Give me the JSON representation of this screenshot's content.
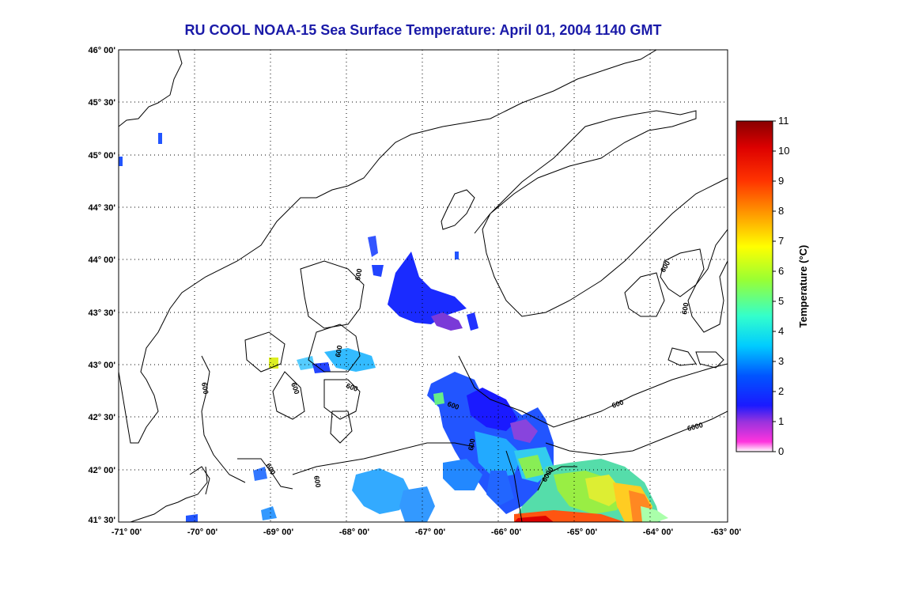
{
  "title": "RU COOL  NOAA-15  Sea Surface Temperature:  April 01, 2004 1140 GMT",
  "axes": {
    "lon_ticks": [
      "-71° 00'",
      "-70° 00'",
      "-69° 00'",
      "-68° 00'",
      "-67° 00'",
      "-66° 00'",
      "-65° 00'",
      "-64° 00'",
      "-63° 00'"
    ],
    "lat_ticks": [
      "46° 00'",
      "45° 30'",
      "45° 00'",
      "44° 30'",
      "44° 00'",
      "43° 30'",
      "43° 00'",
      "42° 30'",
      "42° 00'",
      "41° 30'"
    ]
  },
  "colorbar": {
    "label": "Temperature (°C)",
    "ticks": [
      "0",
      "1",
      "2",
      "3",
      "4",
      "5",
      "6",
      "7",
      "8",
      "9",
      "10",
      "11"
    ],
    "min": 0,
    "max": 11,
    "colors": [
      "#ffffff",
      "#ff33cc",
      "#8833dd",
      "#1a1aff",
      "#0066ff",
      "#00ccff",
      "#33ffcc",
      "#99ff33",
      "#ffff00",
      "#ff9900",
      "#ff2200",
      "#880000"
    ]
  },
  "contours": {
    "labels": [
      "600",
      "600",
      "600",
      "600",
      "600",
      "600",
      "600",
      "600",
      "600",
      "600",
      "6000",
      "6000",
      "600",
      "600"
    ]
  }
}
